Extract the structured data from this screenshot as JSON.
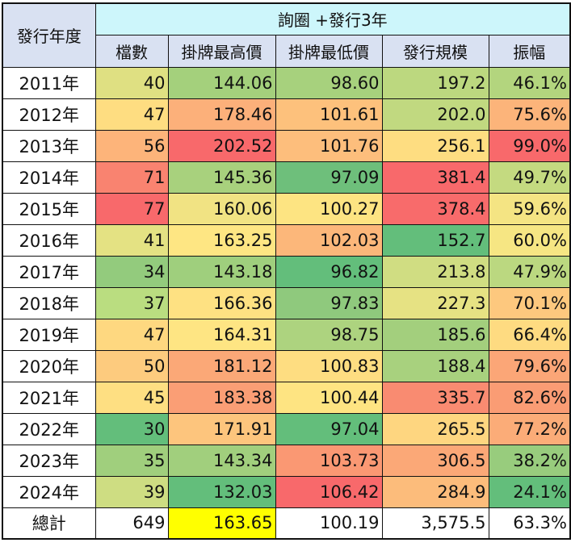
{
  "table": {
    "year_header": "發行年度",
    "group_header": "詢圈 +發行3年",
    "columns": [
      "檔數",
      "掛牌最高價",
      "掛牌最低價",
      "發行規模",
      "振幅"
    ],
    "rows": [
      {
        "year": "2011年",
        "values": [
          "40",
          "144.06",
          "98.60",
          "197.2",
          "46.1%"
        ],
        "colors": [
          "#dfe082",
          "#a4d07c",
          "#a7d17d",
          "#bcd87f",
          "#b3d57e"
        ]
      },
      {
        "year": "2012年",
        "values": [
          "47",
          "178.46",
          "101.61",
          "202.0",
          "75.6%"
        ],
        "colors": [
          "#fedd81",
          "#fcb07a",
          "#fdc17c",
          "#c1d980",
          "#fcb47a"
        ]
      },
      {
        "year": "2013年",
        "values": [
          "56",
          "202.52",
          "101.76",
          "256.1",
          "99.0%"
        ],
        "colors": [
          "#fdb47a",
          "#f8696b",
          "#fdbe7c",
          "#fedd81",
          "#f8696b"
        ]
      },
      {
        "year": "2014年",
        "values": [
          "71",
          "145.36",
          "97.09",
          "381.4",
          "49.7%"
        ],
        "colors": [
          "#f98370",
          "#a8d17d",
          "#6ebf7b",
          "#f8696b",
          "#c4da80"
        ]
      },
      {
        "year": "2015年",
        "values": [
          "77",
          "160.06",
          "100.27",
          "378.4",
          "59.6%"
        ],
        "colors": [
          "#f8696b",
          "#f1e383",
          "#fde482",
          "#f86b6b",
          "#f4e483"
        ]
      },
      {
        "year": "2016年",
        "values": [
          "41",
          "163.25",
          "102.03",
          "152.7",
          "60.0%"
        ],
        "colors": [
          "#e4e283",
          "#fee683",
          "#fcb77a",
          "#63be7b",
          "#f6e683"
        ]
      },
      {
        "year": "2017年",
        "values": [
          "34",
          "143.18",
          "96.82",
          "213.8",
          "47.9%"
        ],
        "colors": [
          "#93cb7d",
          "#9fcf7d",
          "#63be7b",
          "#d0dd82",
          "#bbd880"
        ]
      },
      {
        "year": "2018年",
        "values": [
          "37",
          "166.36",
          "97.83",
          "227.3",
          "70.1%"
        ],
        "colors": [
          "#badd80",
          "#fee182",
          "#8fc97d",
          "#e6e283",
          "#fdc87e"
        ]
      },
      {
        "year": "2019年",
        "values": [
          "47",
          "164.31",
          "98.75",
          "185.6",
          "66.4%"
        ],
        "colors": [
          "#fed880",
          "#fee583",
          "#add37f",
          "#a3cf7d",
          "#fedb81"
        ]
      },
      {
        "year": "2020年",
        "values": [
          "50",
          "181.12",
          "100.83",
          "188.4",
          "79.6%"
        ],
        "colors": [
          "#fdcb7e",
          "#fba877",
          "#fedd81",
          "#a8d17e",
          "#fba677"
        ]
      },
      {
        "year": "2021年",
        "values": [
          "45",
          "183.38",
          "100.44",
          "335.7",
          "82.6%"
        ],
        "colors": [
          "#fedf82",
          "#fa9e75",
          "#fee482",
          "#f98b71",
          "#fa9c74"
        ]
      },
      {
        "year": "2022年",
        "values": [
          "30",
          "171.91",
          "97.04",
          "265.5",
          "77.2%"
        ],
        "colors": [
          "#63be7b",
          "#fdc57d",
          "#63be7b",
          "#fed680",
          "#fbac78"
        ]
      },
      {
        "year": "2023年",
        "values": [
          "35",
          "143.34",
          "103.73",
          "306.5",
          "38.2%"
        ],
        "colors": [
          "#a0cf7d",
          "#a1cf7d",
          "#fa9873",
          "#fba877",
          "#98cc7d"
        ]
      },
      {
        "year": "2024年",
        "values": [
          "39",
          "132.03",
          "106.42",
          "284.9",
          "24.1%"
        ],
        "colors": [
          "#cedd82",
          "#63be7b",
          "#f8696b",
          "#fcbc7b",
          "#63be7b"
        ]
      }
    ],
    "total": {
      "label": "總計",
      "values": [
        "649",
        "163.65",
        "100.19",
        "3,575.5",
        "63.3%"
      ],
      "highlight_color": "#ffff00"
    }
  }
}
